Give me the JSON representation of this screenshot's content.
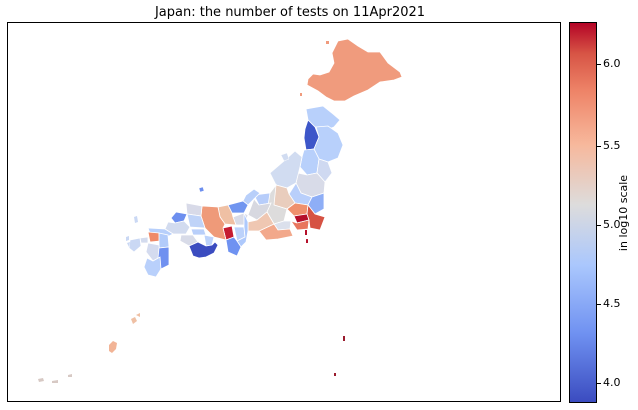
{
  "title": "Japan: the number of tests on 11Apr2021",
  "colorbar": {
    "label": "in log10 scale",
    "ticks": [
      "6.0",
      "5.5",
      "5.0",
      "4.5",
      "4.0"
    ]
  },
  "palette": {
    "low": "#3b4cc0",
    "mid": "#dddcdc",
    "high": "#b40426"
  }
}
